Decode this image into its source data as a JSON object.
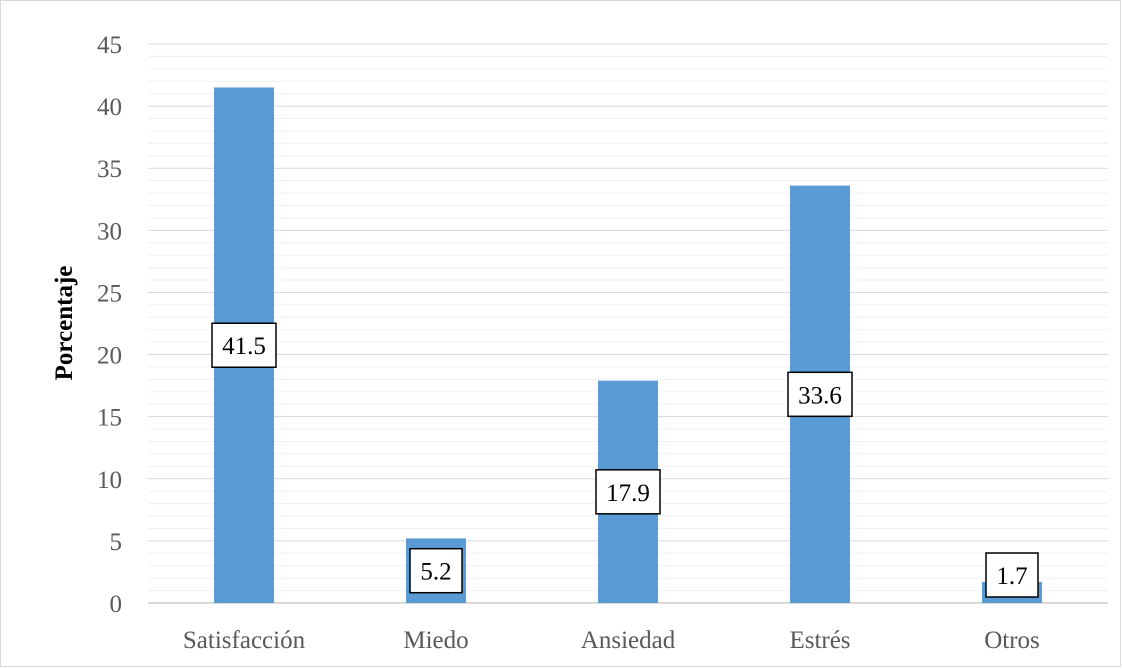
{
  "chart_data": {
    "type": "bar",
    "categories": [
      "Satisfacción",
      "Miedo",
      "Ansiedad",
      "Estrés",
      "Otros"
    ],
    "values": [
      41.5,
      5.2,
      17.9,
      33.6,
      1.7
    ],
    "data_labels": [
      "41.5",
      "5.2",
      "17.9",
      "33.6",
      "1.7"
    ],
    "title": "",
    "xlabel": "",
    "ylabel": "Porcentaje",
    "ylim": [
      0,
      45
    ],
    "yticks": [
      0,
      5,
      10,
      15,
      20,
      25,
      30,
      35,
      40,
      45
    ],
    "minor_gridlines": true,
    "grid": true,
    "legend": "none",
    "colors": {
      "bar": "#5b9bd5",
      "gridline": "#d9d9d9",
      "minor_gridline": "#f0f0f0",
      "axis": "#d9d9d9",
      "tick_text": "#595959"
    }
  }
}
